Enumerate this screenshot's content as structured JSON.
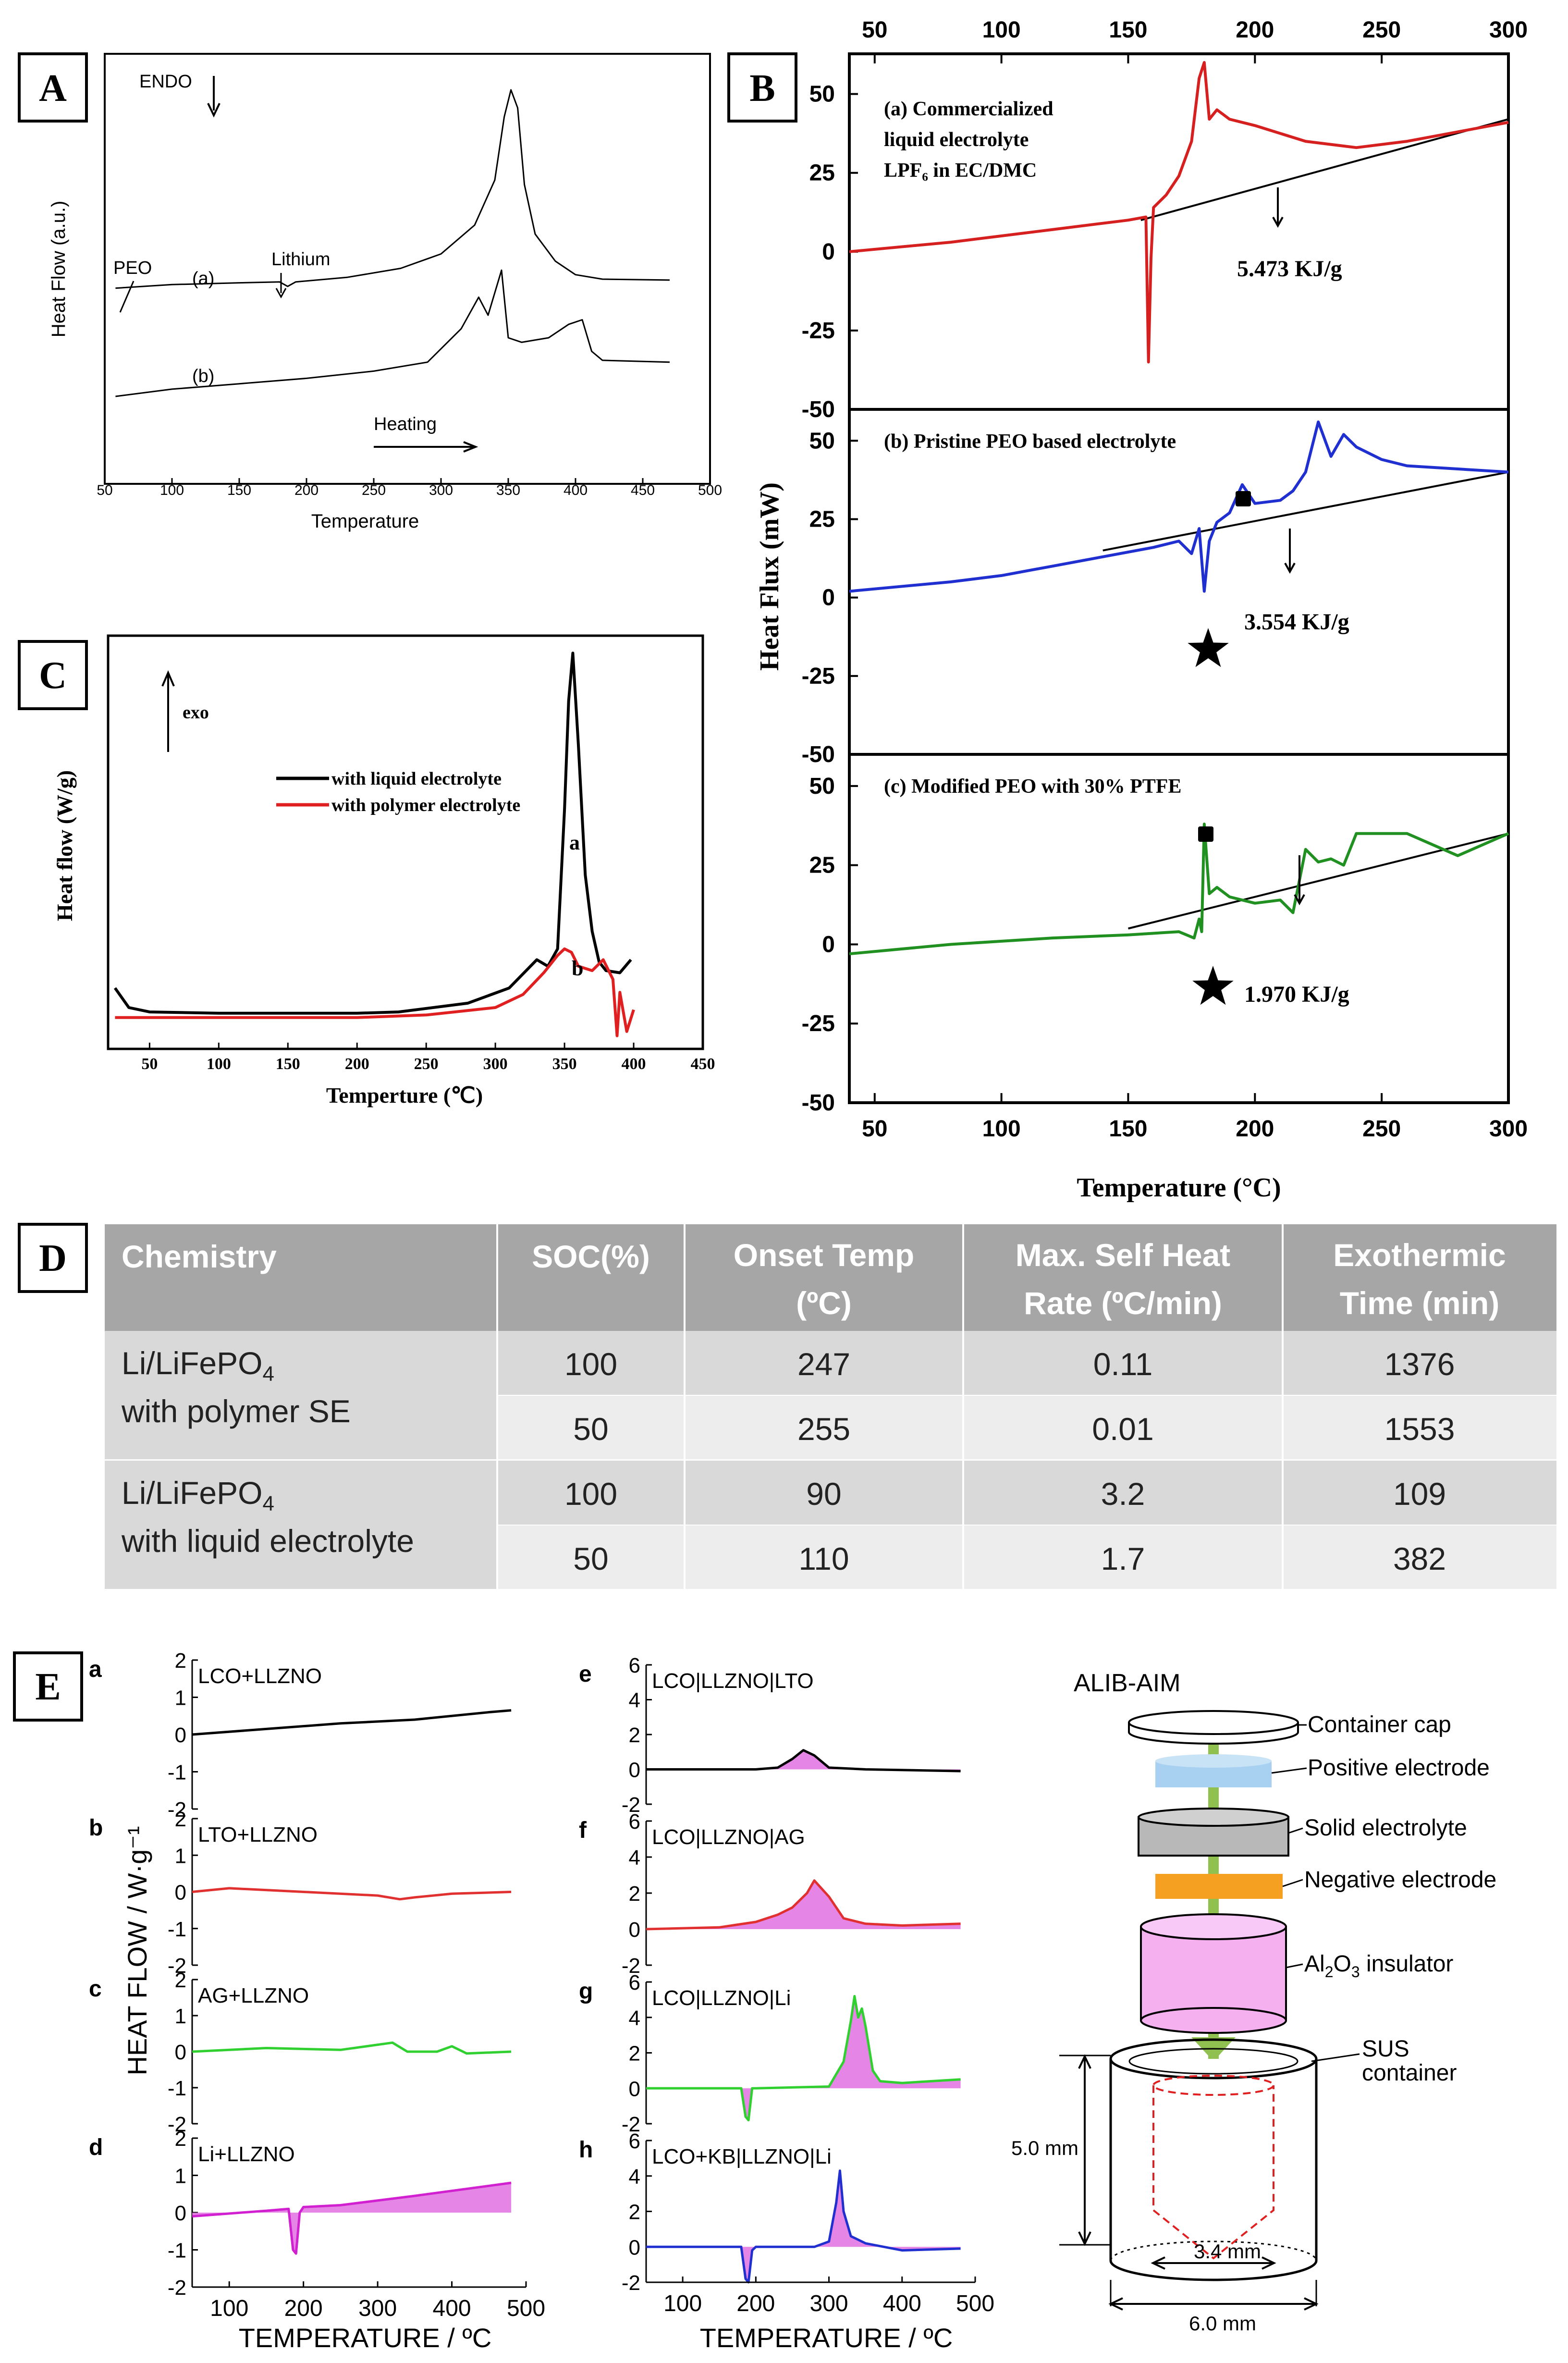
{
  "panel_labels": {
    "A": "A",
    "B": "B",
    "C": "C",
    "D": "D",
    "E": "E"
  },
  "chart_data": [
    {
      "id": "A",
      "type": "line",
      "title": "",
      "xlabel": "Temperature",
      "ylabel": "Heat Flow (a.u.)",
      "xlim": [
        50,
        500
      ],
      "xticks": [
        50,
        100,
        150,
        200,
        250,
        300,
        350,
        400,
        450,
        500
      ],
      "annotations": {
        "endo": "ENDO",
        "peo": "PEO",
        "lithium": "Lithium",
        "heating": "Heating"
      },
      "series": [
        {
          "name": "(a)",
          "x": [
            58,
            100,
            150,
            180,
            186,
            192,
            230,
            270,
            300,
            325,
            340,
            347,
            352,
            357,
            362,
            370,
            385,
            400,
            420,
            470
          ],
          "y": [
            0.4,
            0.44,
            0.46,
            0.47,
            0.42,
            0.47,
            0.52,
            0.62,
            0.78,
            1.1,
            1.6,
            2.3,
            2.6,
            2.4,
            1.55,
            1.0,
            0.7,
            0.55,
            0.5,
            0.49
          ]
        },
        {
          "name": "(b)",
          "x": [
            58,
            100,
            150,
            200,
            250,
            290,
            315,
            328,
            335,
            340,
            345,
            350,
            360,
            380,
            395,
            405,
            412,
            420,
            470
          ],
          "y": [
            -0.8,
            -0.72,
            -0.66,
            -0.6,
            -0.52,
            -0.42,
            -0.05,
            0.3,
            0.1,
            0.35,
            0.6,
            -0.15,
            -0.2,
            -0.15,
            0.0,
            0.05,
            -0.3,
            -0.4,
            -0.42
          ]
        }
      ]
    },
    {
      "id": "B",
      "type": "line",
      "title": "",
      "xlabel": "Temperature (°C)",
      "ylabel": "Heat Flux (mW)",
      "xlim": [
        50,
        300
      ],
      "xticks": [
        50,
        100,
        150,
        200,
        250,
        300
      ],
      "ylim": [
        -50,
        50
      ],
      "yticks": [
        50,
        25,
        0,
        -25,
        -50
      ],
      "subplots": [
        {
          "title_lines": [
            "(a) Commercialized",
            "liquid electrolyte",
            "LPF₆  in EC/DMC"
          ],
          "enthalpy": "5.473 KJ/g",
          "color": "#d62020",
          "x": [
            40,
            80,
            100,
            120,
            140,
            150,
            157,
            158,
            159,
            160,
            165,
            170,
            175,
            178,
            180,
            182,
            185,
            190,
            200,
            220,
            240,
            260,
            280,
            300
          ],
          "y": [
            0,
            3,
            5,
            7,
            9,
            10,
            11,
            -35,
            -2,
            14,
            18,
            24,
            35,
            55,
            60,
            42,
            45,
            42,
            40,
            35,
            33,
            35,
            38,
            41
          ],
          "baseline_x": [
            155,
            300
          ],
          "baseline_y": [
            10,
            42
          ]
        },
        {
          "title_lines": [
            "(b) Pristine PEO based electrolyte"
          ],
          "enthalpy": "3.554 KJ/g",
          "color": "#2030d0",
          "x": [
            40,
            80,
            100,
            120,
            140,
            160,
            170,
            175,
            178,
            180,
            182,
            185,
            190,
            195,
            200,
            210,
            215,
            220,
            225,
            230,
            235,
            240,
            250,
            260,
            280,
            300
          ],
          "y": [
            2,
            5,
            7,
            10,
            13,
            16,
            18,
            14,
            22,
            2,
            18,
            24,
            27,
            36,
            30,
            31,
            34,
            40,
            56,
            45,
            52,
            48,
            44,
            42,
            41,
            40
          ],
          "baseline_x": [
            140,
            300
          ],
          "baseline_y": [
            15,
            40
          ]
        },
        {
          "title_lines": [
            "(c) Modified  PEO with 30% PTFE"
          ],
          "enthalpy": "1.970 KJ/g",
          "color": "#209020",
          "x": [
            40,
            80,
            100,
            120,
            150,
            170,
            176,
            178,
            179,
            180,
            182,
            185,
            190,
            200,
            210,
            215,
            220,
            225,
            230,
            235,
            240,
            260,
            280,
            300
          ],
          "y": [
            -3,
            0,
            1,
            2,
            3,
            4,
            2,
            8,
            4,
            38,
            16,
            18,
            15,
            13,
            14,
            10,
            30,
            26,
            27,
            25,
            35,
            35,
            28,
            35
          ],
          "baseline_x": [
            150,
            300
          ],
          "baseline_y": [
            5,
            35
          ]
        }
      ]
    },
    {
      "id": "C",
      "type": "line",
      "title": "",
      "xlabel": "Temperture (℃)",
      "ylabel": "Heat flow (W/g)",
      "xlim": [
        20,
        450
      ],
      "xticks": [
        50,
        100,
        150,
        200,
        250,
        300,
        350,
        400,
        450
      ],
      "annotations": {
        "exo": "exo",
        "label_a": "a",
        "label_b": "b"
      },
      "series": [
        {
          "name": "with liquid electrolyte",
          "color": "#000000",
          "x": [
            25,
            35,
            50,
            100,
            150,
            200,
            230,
            280,
            310,
            330,
            338,
            345,
            350,
            353,
            356,
            360,
            365,
            370,
            375,
            380,
            390,
            398
          ],
          "y": [
            0.9,
            0.45,
            0.35,
            0.32,
            0.32,
            0.32,
            0.35,
            0.55,
            0.9,
            1.55,
            1.4,
            1.8,
            5.0,
            7.5,
            8.6,
            6.5,
            3.5,
            2.2,
            1.5,
            1.3,
            1.25,
            1.55
          ]
        },
        {
          "name": "with polymer electrolyte",
          "color": "#e02020",
          "x": [
            25,
            50,
            100,
            150,
            200,
            250,
            300,
            320,
            335,
            345,
            350,
            355,
            360,
            370,
            378,
            385,
            388,
            390,
            395,
            400
          ],
          "y": [
            0.22,
            0.22,
            0.22,
            0.22,
            0.22,
            0.28,
            0.45,
            0.75,
            1.25,
            1.65,
            1.8,
            1.72,
            1.4,
            1.3,
            1.55,
            1.1,
            -0.2,
            0.8,
            -0.1,
            0.4
          ]
        }
      ]
    },
    {
      "id": "D",
      "type": "table",
      "columns": [
        [
          "Chemistry"
        ],
        [
          "SOC(%)"
        ],
        [
          "Onset Temp",
          "(ºC)"
        ],
        [
          "Max. Self Heat",
          "Rate (ºC/min)"
        ],
        [
          "Exothermic",
          "Time (min)"
        ]
      ],
      "groups": [
        {
          "chem_main": "Li/LiFePO",
          "chem_sub": "4",
          "chem_line2": "with polymer SE",
          "rows": [
            [
              "100",
              "247",
              "0.11",
              "1376"
            ],
            [
              "50",
              "255",
              "0.01",
              "1553"
            ]
          ]
        },
        {
          "chem_main": "Li/LiFePO",
          "chem_sub": "4",
          "chem_line2": "with liquid electrolyte",
          "rows": [
            [
              "100",
              "90",
              "3.2",
              "109"
            ],
            [
              "50",
              "110",
              "1.7",
              "382"
            ]
          ]
        }
      ]
    },
    {
      "id": "E",
      "type": "line",
      "ylabel": "HEAT FLOW / W·g⁻¹",
      "xlabel": "TEMPERATURE / ºC",
      "xlim": [
        50,
        500
      ],
      "xticks": [
        100,
        200,
        300,
        400,
        500
      ],
      "left_col": [
        {
          "letter": "a",
          "label": "LCO+LLZNO",
          "color": "#000000",
          "ylim": [
            -2,
            2
          ],
          "yticks": [
            2,
            1,
            0,
            -1,
            -2
          ],
          "x": [
            50,
            150,
            250,
            350,
            450,
            480
          ],
          "y": [
            0.0,
            0.15,
            0.3,
            0.4,
            0.6,
            0.65
          ]
        },
        {
          "letter": "b",
          "label": "LTO+LLZNO",
          "color": "#e03030",
          "ylim": [
            -2,
            2
          ],
          "yticks": [
            2,
            1,
            0,
            -1,
            -2
          ],
          "x": [
            50,
            100,
            200,
            300,
            330,
            350,
            400,
            480
          ],
          "y": [
            0.0,
            0.1,
            0.0,
            -0.1,
            -0.2,
            -0.15,
            -0.05,
            0.0
          ]
        },
        {
          "letter": "c",
          "label": "AG+LLZNO",
          "color": "#30d030",
          "ylim": [
            -2,
            2
          ],
          "yticks": [
            2,
            1,
            0,
            -1,
            -2
          ],
          "x": [
            50,
            150,
            250,
            320,
            340,
            380,
            400,
            420,
            480
          ],
          "y": [
            0.0,
            0.1,
            0.05,
            0.25,
            0.0,
            0.0,
            0.15,
            -0.05,
            0.0
          ]
        },
        {
          "letter": "d",
          "label": "Li+LLZNO",
          "color": "#d020d0",
          "ylim": [
            -2,
            2
          ],
          "yticks": [
            2,
            1,
            0,
            -1,
            -2
          ],
          "x": [
            50,
            150,
            180,
            186,
            190,
            195,
            200,
            250,
            350,
            480
          ],
          "y": [
            -0.1,
            0.05,
            0.1,
            -1.0,
            -1.1,
            0.0,
            0.15,
            0.2,
            0.45,
            0.8
          ]
        }
      ],
      "mid_col": [
        {
          "letter": "e",
          "label": "LCO|LLZNO|LTO",
          "color": "#000000",
          "ylim": [
            -2,
            6
          ],
          "yticks": [
            6,
            4,
            2,
            0,
            -2
          ],
          "x": [
            50,
            200,
            230,
            250,
            265,
            280,
            300,
            350,
            480
          ],
          "y": [
            0,
            0,
            0.1,
            0.6,
            1.1,
            0.8,
            0.1,
            0,
            -0.1
          ]
        },
        {
          "letter": "f",
          "label": "LCO|LLZNO|AG",
          "color": "#e03030",
          "ylim": [
            -2,
            6
          ],
          "yticks": [
            6,
            4,
            2,
            0,
            -2
          ],
          "x": [
            50,
            150,
            200,
            230,
            250,
            270,
            280,
            300,
            320,
            350,
            400,
            480
          ],
          "y": [
            0,
            0.1,
            0.4,
            0.8,
            1.2,
            2.0,
            2.7,
            1.8,
            0.6,
            0.3,
            0.2,
            0.3
          ]
        },
        {
          "letter": "g",
          "label": "LCO|LLZNO|Li",
          "color": "#30d030",
          "ylim": [
            -2,
            6
          ],
          "yticks": [
            6,
            4,
            2,
            0,
            -2
          ],
          "x": [
            50,
            180,
            186,
            190,
            195,
            200,
            300,
            320,
            330,
            335,
            340,
            345,
            350,
            360,
            370,
            400,
            480
          ],
          "y": [
            0,
            0,
            -1.6,
            -1.8,
            0,
            0,
            0.1,
            1.5,
            3.8,
            5.2,
            4.0,
            4.5,
            3.5,
            1.0,
            0.4,
            0.3,
            0.5
          ]
        },
        {
          "letter": "h",
          "label": "LCO+KB|LLZNO|Li",
          "color": "#2030d0",
          "ylim": [
            -2,
            6
          ],
          "yticks": [
            6,
            4,
            2,
            0,
            -2
          ],
          "x": [
            50,
            180,
            186,
            190,
            195,
            200,
            280,
            300,
            310,
            315,
            320,
            330,
            350,
            400,
            480
          ],
          "y": [
            0,
            0,
            -1.8,
            -2.0,
            -0.2,
            0,
            0,
            0.3,
            2.5,
            4.3,
            2.0,
            0.6,
            0.2,
            -0.2,
            -0.1
          ]
        }
      ]
    }
  ],
  "diagram_E": {
    "title": "ALIB-AIM",
    "labels": {
      "cap": "Container cap",
      "pos": "Positive electrode",
      "solid": "Solid electrolyte",
      "neg": "Negative electrode",
      "al2o3_main": "Al",
      "al2o3_sub": "2",
      "al2o3_rest": "O",
      "al2o3_sub2": "3",
      "al2o3_end": " insulator",
      "sus1": "SUS",
      "sus2": "container",
      "height": "5.0 mm",
      "inner": "3.4 mm",
      "outer": "6.0 mm"
    },
    "colors": {
      "pos": "#a8d0f0",
      "solid": "#b8b8b8",
      "neg": "#f5a020",
      "al2o3": "#f5b0f0",
      "rod": "#90c050",
      "dash": "#e02020"
    }
  }
}
